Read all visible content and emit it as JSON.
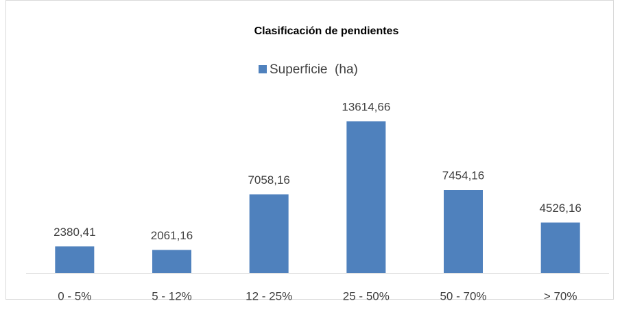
{
  "chart_data": {
    "type": "bar",
    "title": "Clasificación de pendientes",
    "categories": [
      "0 - 5%",
      "5 - 12%",
      "12 - 25%",
      "25 - 50%",
      "50 - 70%",
      "> 70%"
    ],
    "series": [
      {
        "name": "Superficie  (ha)",
        "color": "#4f81bd",
        "values": [
          2380.41,
          2061.16,
          7058.16,
          13614.66,
          7454.16,
          4526.16
        ],
        "value_labels": [
          "2380,41",
          "2061,16",
          "7058,16",
          "13614,66",
          "7454,16",
          "4526,16"
        ]
      }
    ],
    "legend": "top"
  }
}
